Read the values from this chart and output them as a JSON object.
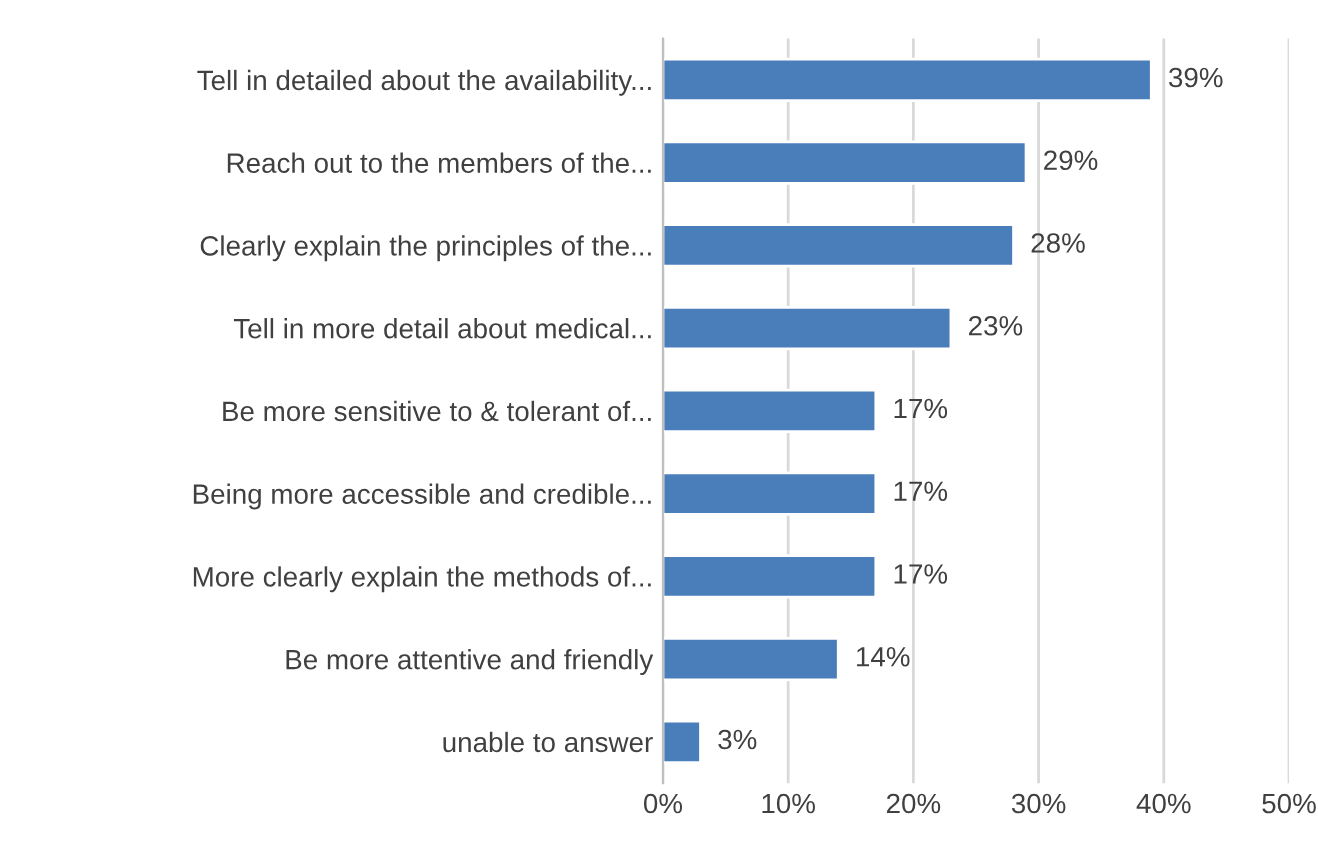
{
  "chart_data": {
    "type": "bar",
    "orientation": "horizontal",
    "categories": [
      "Tell in detailed about the availability...",
      "Reach out to the members of the...",
      "Clearly explain the principles of the...",
      "Tell in more detail about medical...",
      "Be more sensitive to & tolerant of...",
      "Being more accessible and credible...",
      "More clearly explain the methods of...",
      "Be more attentive and friendly",
      "unable to answer"
    ],
    "values": [
      39,
      29,
      28,
      23,
      17,
      17,
      17,
      14,
      3
    ],
    "value_labels": [
      "39%",
      "29%",
      "28%",
      "23%",
      "17%",
      "17%",
      "17%",
      "14%",
      "3%"
    ],
    "color": "#4a7ebb",
    "xlim": [
      0,
      50
    ],
    "xticks": [
      {
        "value": 0,
        "label": "0%"
      },
      {
        "value": 10,
        "label": "10%"
      },
      {
        "value": 20,
        "label": "20%"
      },
      {
        "value": 30,
        "label": "30%"
      },
      {
        "value": 40,
        "label": "40%"
      },
      {
        "value": 50,
        "label": "50%"
      }
    ],
    "grid": "x",
    "legend": false
  }
}
